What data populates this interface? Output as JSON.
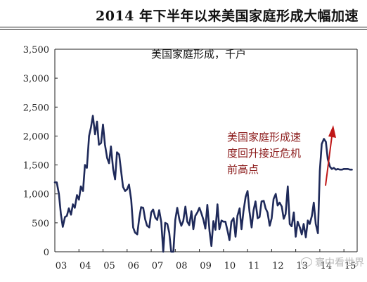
{
  "header": {
    "title": "2014 年下半年以来美国家庭形成大幅加速"
  },
  "watermark": {
    "text": "寰中看世界"
  },
  "chart_data": {
    "type": "line",
    "title": "美国家庭形成，千户",
    "annotation": {
      "lines": [
        "美国家庭形成速",
        "度回升接近危机",
        "前高点"
      ],
      "color": "#8b1a1a"
    },
    "ylim": [
      0,
      3500
    ],
    "yticks": [
      0,
      500,
      1000,
      1500,
      2000,
      2500,
      3000,
      3500
    ],
    "ytick_labels": [
      "0",
      "500",
      "1,000",
      "1,500",
      "2,000",
      "2,500",
      "3,000",
      "3,500"
    ],
    "xlim": [
      2003.0,
      2015.55
    ],
    "xticks": [
      2003,
      2004,
      2005,
      2006,
      2007,
      2008,
      2009,
      2010,
      2011,
      2012,
      2013,
      2014,
      2015
    ],
    "xtick_labels": [
      "03",
      "04",
      "05",
      "06",
      "07",
      "08",
      "09",
      "10",
      "11",
      "12",
      "13",
      "14",
      "15"
    ],
    "grid": false,
    "line_color": "#1f2a5a",
    "series": [
      {
        "x": [
          2003.0,
          2003.08,
          2003.17,
          2003.25,
          2003.33,
          2003.42,
          2003.5,
          2003.58,
          2003.67,
          2003.75,
          2003.83,
          2003.92,
          2004.0,
          2004.08,
          2004.17,
          2004.25,
          2004.33,
          2004.42,
          2004.5,
          2004.58,
          2004.67,
          2004.75,
          2004.83,
          2004.92,
          2005.0,
          2005.08,
          2005.17,
          2005.25,
          2005.33,
          2005.42,
          2005.5,
          2005.58,
          2005.67,
          2005.75,
          2005.83,
          2005.92,
          2006.0,
          2006.08,
          2006.17,
          2006.25,
          2006.33,
          2006.42,
          2006.5,
          2006.58,
          2006.67,
          2006.75,
          2006.83,
          2006.92,
          2007.0,
          2007.08,
          2007.17,
          2007.25,
          2007.33,
          2007.42,
          2007.5,
          2007.58,
          2007.67,
          2007.75,
          2007.83,
          2007.92,
          2008.0,
          2008.08,
          2008.17,
          2008.25,
          2008.33,
          2008.42,
          2008.5,
          2008.58,
          2008.67,
          2008.75,
          2008.83,
          2008.92,
          2009.0,
          2009.08,
          2009.17,
          2009.25,
          2009.33,
          2009.42,
          2009.5,
          2009.58,
          2009.67,
          2009.75,
          2009.83,
          2009.92,
          2010.0,
          2010.08,
          2010.17,
          2010.25,
          2010.33,
          2010.42,
          2010.5,
          2010.58,
          2010.67,
          2010.75,
          2010.83,
          2010.92,
          2011.0,
          2011.08,
          2011.17,
          2011.25,
          2011.33,
          2011.42,
          2011.5,
          2011.58,
          2011.67,
          2011.75,
          2011.83,
          2011.92,
          2012.0,
          2012.08,
          2012.17,
          2012.25,
          2012.33,
          2012.42,
          2012.5,
          2012.58,
          2012.67,
          2012.75,
          2012.83,
          2012.92,
          2013.0,
          2013.08,
          2013.17,
          2013.25,
          2013.33,
          2013.42,
          2013.5,
          2013.58,
          2013.67,
          2013.75,
          2013.83,
          2013.92,
          2014.0,
          2014.08,
          2014.17,
          2014.25,
          2014.33,
          2014.42,
          2014.5,
          2014.58,
          2014.67,
          2014.75,
          2014.83,
          2014.92,
          2015.0,
          2015.08,
          2015.17,
          2015.25,
          2015.33
        ],
        "y": [
          1200,
          1200,
          1000,
          650,
          430,
          600,
          620,
          750,
          640,
          820,
          760,
          980,
          900,
          1130,
          1050,
          1500,
          1450,
          2000,
          2150,
          2350,
          2030,
          2250,
          1850,
          1880,
          2200,
          1850,
          1620,
          1530,
          1820,
          1430,
          1250,
          1720,
          1680,
          1400,
          1120,
          1050,
          1080,
          1160,
          900,
          420,
          330,
          300,
          570,
          770,
          760,
          560,
          450,
          420,
          680,
          730,
          590,
          550,
          720,
          510,
          0,
          500,
          480,
          330,
          0,
          0,
          550,
          760,
          560,
          450,
          530,
          780,
          520,
          460,
          700,
          390,
          620,
          680,
          760,
          670,
          550,
          400,
          810,
          360,
          100,
          530,
          380,
          820,
          390,
          540,
          520,
          520,
          360,
          200,
          520,
          580,
          260,
          620,
          750,
          390,
          700,
          950,
          1050,
          700,
          420,
          720,
          870,
          580,
          600,
          870,
          880,
          750,
          680,
          450,
          580,
          910,
          1000,
          800,
          850,
          780,
          570,
          650,
          1130,
          480,
          440,
          680,
          260,
          520,
          420,
          300,
          480,
          250,
          540,
          480,
          620,
          850,
          480,
          320,
          1400,
          1860,
          1950,
          1900,
          1600,
          1470,
          1430,
          1450,
          1420,
          1430,
          1420,
          1420,
          1430,
          1430,
          1430,
          1420,
          1420
        ]
      }
    ]
  }
}
